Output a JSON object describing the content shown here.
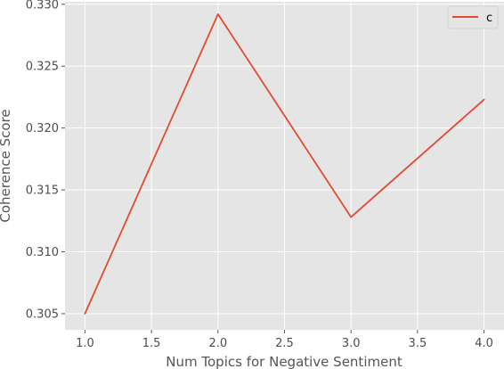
{
  "chart_data": {
    "type": "line",
    "xlabel": "Num Topics for Negative Sentiment",
    "ylabel": "Coherence Score",
    "xlim": [
      0.85,
      4.15
    ],
    "ylim": [
      0.3037,
      0.3302
    ],
    "xticks": [
      1.0,
      1.5,
      2.0,
      2.5,
      3.0,
      3.5,
      4.0
    ],
    "xtick_labels": [
      "1.0",
      "1.5",
      "2.0",
      "2.5",
      "3.0",
      "3.5",
      "4.0"
    ],
    "yticks": [
      0.305,
      0.31,
      0.315,
      0.32,
      0.325,
      0.33
    ],
    "ytick_labels": [
      "0.305",
      "0.310",
      "0.315",
      "0.320",
      "0.325",
      "0.330"
    ],
    "grid": true,
    "legend_position": "top-right",
    "series": [
      {
        "name": "c",
        "color": "#e24a33",
        "x": [
          1,
          2,
          3,
          4
        ],
        "y": [
          0.305,
          0.3292,
          0.3128,
          0.3223
        ]
      }
    ]
  },
  "colors": {
    "plot_background": "#e5e5e5",
    "grid": "#ffffff",
    "series_line": "#e24a33"
  }
}
